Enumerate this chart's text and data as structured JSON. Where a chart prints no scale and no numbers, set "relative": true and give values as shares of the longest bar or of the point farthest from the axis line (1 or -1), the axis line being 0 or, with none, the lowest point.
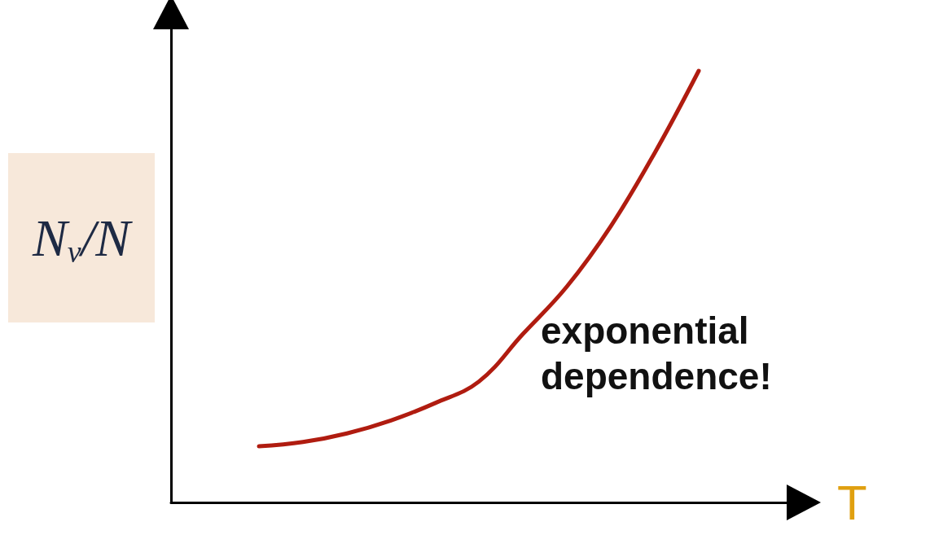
{
  "chart_data": {
    "type": "line",
    "relative": true,
    "xlabel": "T",
    "ylabel": "N$_{v}$/N",
    "categories": [
      null,
      null,
      null,
      null,
      null,
      null,
      null,
      null,
      null,
      null,
      null,
      null,
      null,
      null,
      null
    ],
    "series": [
      {
        "color": "#b01c10",
        "values": [
          null,
          null,
          0.13,
          0.14,
          0.16,
          0.19,
          0.23,
          0.28,
          0.39,
          0.5,
          0.64,
          0.81,
          1,
          null,
          null
        ]
      }
    ],
    "annotations": [
      "exponential dependence!"
    ],
    "marker": "none",
    "line_style": "solid",
    "grid": false
  }
}
